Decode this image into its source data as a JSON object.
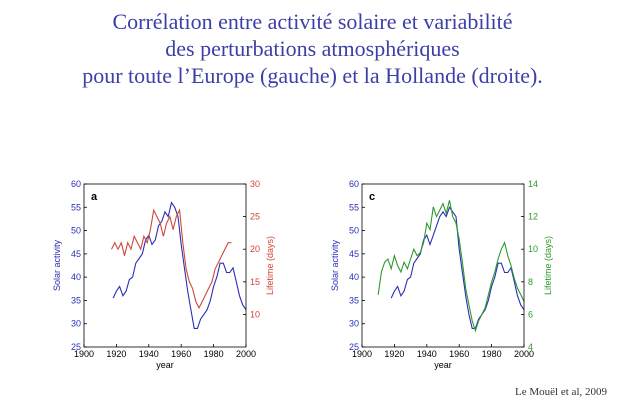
{
  "slide": {
    "title_lines": [
      "Corrélation entre activité solaire et variabilité",
      "des perturbations atmosphériques",
      "pour toute l’Europe (gauche) et la Hollande (droite)."
    ],
    "citation": "Le Mouël et al, 2009",
    "colors": {
      "title": "#3c3fa6",
      "solar": "#2b2fb5",
      "lifetime_a": "#d0473b",
      "lifetime_c": "#2e9a2e"
    }
  },
  "chart_data": [
    {
      "type": "line",
      "panel_label": "a",
      "xlabel": "year",
      "ylabel_left": "Solar activity",
      "ylabel_right": "Lifetime (days)",
      "xlim": [
        1900,
        2000
      ],
      "ylim_left": [
        25,
        60
      ],
      "ylim_right": [
        5,
        30
      ],
      "xticks": [
        1900,
        1920,
        1940,
        1960,
        1980,
        2000
      ],
      "yticks_left": [
        25,
        30,
        35,
        40,
        45,
        50,
        55,
        60
      ],
      "yticks_right": [
        10,
        15,
        20,
        25,
        30
      ],
      "series": [
        {
          "axis": "left",
          "color": "#2b2fb5",
          "x": [
            1918,
            1920,
            1922,
            1924,
            1926,
            1928,
            1930,
            1932,
            1934,
            1936,
            1938,
            1940,
            1942,
            1944,
            1946,
            1948,
            1950,
            1952,
            1954,
            1956,
            1958,
            1960,
            1962,
            1964,
            1966,
            1968,
            1970,
            1972,
            1974,
            1976,
            1978,
            1980,
            1982,
            1984,
            1986,
            1988,
            1990,
            1992,
            1994,
            1996,
            1998,
            2000
          ],
          "y": [
            35.5,
            37,
            38,
            36,
            37,
            39.5,
            40,
            43,
            44,
            45,
            48,
            49,
            47,
            48,
            51,
            52,
            54,
            53,
            56,
            55,
            53,
            47,
            42,
            37,
            33,
            29,
            29,
            31,
            32,
            33,
            35,
            38,
            40,
            43,
            43,
            41,
            41,
            42,
            39,
            36,
            34,
            33
          ]
        },
        {
          "axis": "right",
          "color": "#d0473b",
          "x": [
            1917,
            1919,
            1921,
            1923,
            1925,
            1927,
            1929,
            1931,
            1933,
            1935,
            1937,
            1939,
            1941,
            1943,
            1945,
            1947,
            1949,
            1951,
            1953,
            1955,
            1957,
            1959,
            1961,
            1963,
            1965,
            1967,
            1969,
            1971,
            1973,
            1975,
            1977,
            1979,
            1981,
            1983,
            1985,
            1987,
            1989,
            1991
          ],
          "y": [
            20,
            21,
            20,
            21,
            19,
            21,
            20,
            22,
            21,
            20,
            22,
            21,
            23,
            26,
            25,
            24,
            22,
            24,
            25,
            23,
            25,
            26,
            21,
            17,
            15,
            14,
            12,
            11,
            12,
            13,
            14,
            15,
            17,
            18,
            19,
            20,
            21,
            21
          ]
        }
      ]
    },
    {
      "type": "line",
      "panel_label": "c",
      "xlabel": "year",
      "ylabel_left": "Solar activity",
      "ylabel_right": "Lifetime (days)",
      "xlim": [
        1900,
        2000
      ],
      "ylim_left": [
        25,
        60
      ],
      "ylim_right": [
        4,
        14
      ],
      "xticks": [
        1900,
        1920,
        1940,
        1960,
        1980,
        2000
      ],
      "yticks_left": [
        25,
        30,
        35,
        40,
        45,
        50,
        55,
        60
      ],
      "yticks_right": [
        4,
        6,
        8,
        10,
        12,
        14
      ],
      "series": [
        {
          "axis": "left",
          "color": "#2b2fb5",
          "x": [
            1918,
            1920,
            1922,
            1924,
            1926,
            1928,
            1930,
            1932,
            1934,
            1936,
            1938,
            1940,
            1942,
            1944,
            1946,
            1948,
            1950,
            1952,
            1954,
            1956,
            1958,
            1960,
            1962,
            1964,
            1966,
            1968,
            1970,
            1972,
            1974,
            1976,
            1978,
            1980,
            1982,
            1984,
            1986,
            1988,
            1990,
            1992,
            1994,
            1996,
            1998,
            2000
          ],
          "y": [
            35.5,
            37,
            38,
            36,
            37,
            39.5,
            40,
            43,
            44,
            45,
            48,
            49,
            47,
            49,
            51,
            53,
            54,
            53,
            55,
            54,
            53,
            46,
            41,
            36,
            32,
            29,
            29,
            31,
            32,
            33,
            35,
            38,
            40,
            43,
            43,
            41,
            41,
            42,
            39,
            36,
            34,
            33
          ]
        },
        {
          "axis": "right",
          "color": "#2e9a2e",
          "x": [
            1910,
            1912,
            1914,
            1916,
            1918,
            1920,
            1922,
            1924,
            1926,
            1928,
            1930,
            1932,
            1934,
            1936,
            1938,
            1940,
            1942,
            1944,
            1946,
            1948,
            1950,
            1952,
            1954,
            1956,
            1958,
            1960,
            1962,
            1964,
            1966,
            1968,
            1970,
            1972,
            1974,
            1976,
            1978,
            1980,
            1982,
            1984,
            1986,
            1988,
            1990,
            1992,
            1994,
            1996,
            1998,
            2000
          ],
          "y": [
            7.2,
            8.6,
            9.2,
            9.4,
            8.8,
            9.6,
            9.0,
            8.6,
            9.2,
            8.8,
            9.4,
            10.0,
            9.6,
            9.8,
            10.4,
            11.6,
            11.2,
            12.6,
            12.0,
            12.4,
            12.8,
            12.2,
            13.0,
            12.0,
            11.6,
            10.6,
            9.2,
            7.6,
            6.6,
            5.6,
            5.0,
            5.6,
            6.0,
            6.4,
            7.2,
            8.0,
            8.6,
            9.4,
            10.0,
            10.4,
            9.6,
            9.0,
            8.2,
            7.6,
            7.2,
            6.8
          ]
        }
      ]
    }
  ]
}
